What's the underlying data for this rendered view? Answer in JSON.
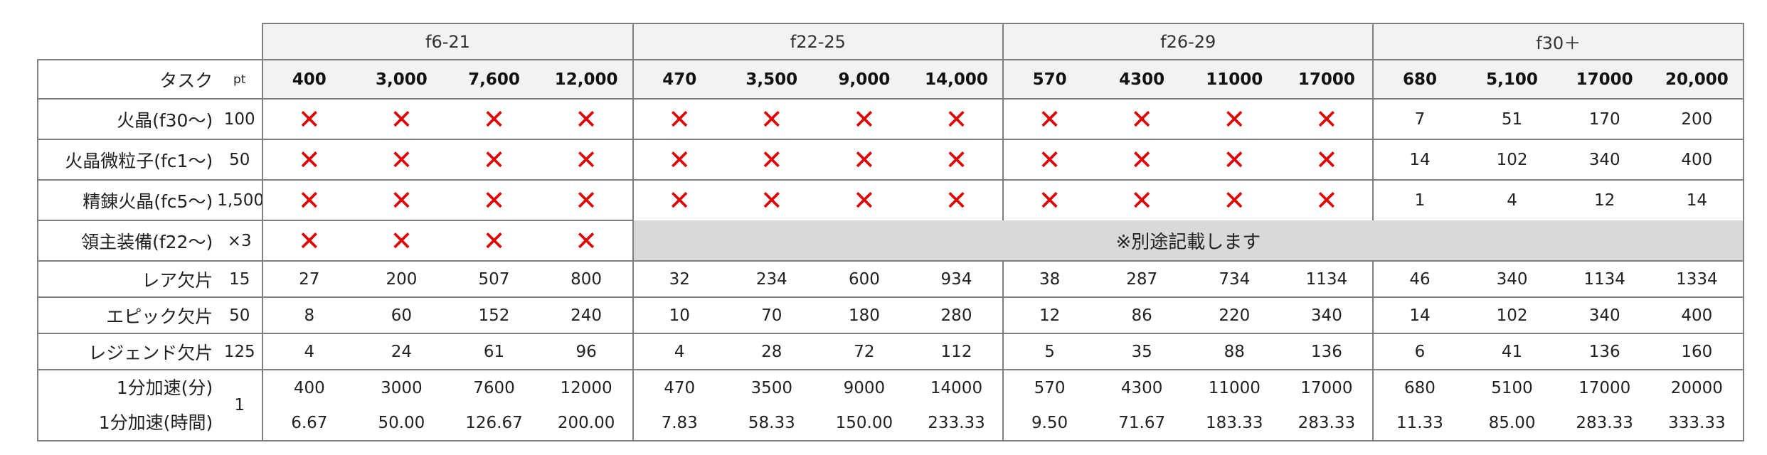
{
  "header": {
    "task_label": "タスク",
    "pt_label": "pt"
  },
  "groups": [
    {
      "label": "f6-21",
      "thresholds": [
        "400",
        "3,000",
        "7,600",
        "12,000"
      ]
    },
    {
      "label": "f22-25",
      "thresholds": [
        "470",
        "3,500",
        "9,000",
        "14,000"
      ]
    },
    {
      "label": "f26-29",
      "thresholds": [
        "570",
        "4300",
        "11000",
        "17000"
      ]
    },
    {
      "label": "f30＋",
      "thresholds": [
        "680",
        "5,100",
        "17000",
        "20,000"
      ]
    }
  ],
  "unavailable_symbol": "✕",
  "separate_note": "※別途記載します",
  "rows": [
    {
      "task": "火晶(f30～)",
      "pt": "100",
      "values": [
        "✕",
        "✕",
        "✕",
        "✕",
        "✕",
        "✕",
        "✕",
        "✕",
        "✕",
        "✕",
        "✕",
        "✕",
        "7",
        "51",
        "170",
        "200"
      ]
    },
    {
      "task": "火晶微粒子(fc1～)",
      "pt": "50",
      "values": [
        "✕",
        "✕",
        "✕",
        "✕",
        "✕",
        "✕",
        "✕",
        "✕",
        "✕",
        "✕",
        "✕",
        "✕",
        "14",
        "102",
        "340",
        "400"
      ]
    },
    {
      "task": "精錬火晶(fc5～)",
      "pt": "1,500",
      "values": [
        "✕",
        "✕",
        "✕",
        "✕",
        "✕",
        "✕",
        "✕",
        "✕",
        "✕",
        "✕",
        "✕",
        "✕",
        "1",
        "4",
        "12",
        "14"
      ]
    },
    {
      "task": "領主装備(f22～)",
      "pt": "×3",
      "values": [
        "✕",
        "✕",
        "✕",
        "✕"
      ]
    },
    {
      "task": "レア欠片",
      "pt": "15",
      "values": [
        "27",
        "200",
        "507",
        "800",
        "32",
        "234",
        "600",
        "934",
        "38",
        "287",
        "734",
        "1134",
        "46",
        "340",
        "1134",
        "1334"
      ]
    },
    {
      "task": "エピック欠片",
      "pt": "50",
      "values": [
        "8",
        "60",
        "152",
        "240",
        "10",
        "70",
        "180",
        "280",
        "12",
        "86",
        "220",
        "340",
        "14",
        "102",
        "340",
        "400"
      ]
    },
    {
      "task": "レジェンド欠片",
      "pt": "125",
      "values": [
        "4",
        "24",
        "61",
        "96",
        "4",
        "28",
        "72",
        "112",
        "5",
        "35",
        "88",
        "136",
        "6",
        "41",
        "136",
        "160"
      ]
    }
  ],
  "speedup": {
    "pt": "1",
    "minutes_label": "1分加速(分)",
    "hours_label": "1分加速(時間)",
    "minutes": [
      "400",
      "3000",
      "7600",
      "12000",
      "470",
      "3500",
      "9000",
      "14000",
      "570",
      "4300",
      "11000",
      "17000",
      "680",
      "5100",
      "17000",
      "20000"
    ],
    "hours": [
      "6.67",
      "50.00",
      "126.67",
      "200.00",
      "7.83",
      "58.33",
      "150.00",
      "233.33",
      "9.50",
      "71.67",
      "183.33",
      "283.33",
      "11.33",
      "85.00",
      "283.33",
      "333.33"
    ]
  }
}
